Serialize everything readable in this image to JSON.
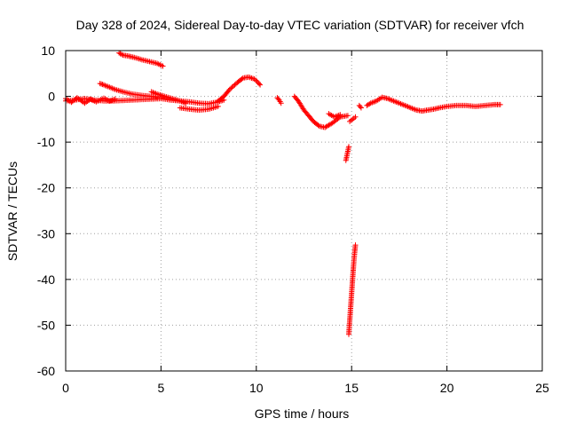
{
  "chart_data": {
    "type": "scatter",
    "title": "Day 328 of 2024, Sidereal Day-to-day VTEC variation (SDTVAR) for receiver vfch",
    "xlabel": "GPS time / hours",
    "ylabel": "SDTVAR / TECUs",
    "xlim": [
      0,
      25
    ],
    "ylim": [
      -60,
      10
    ],
    "xticks": [
      "0",
      "5",
      "10",
      "15",
      "20",
      "25"
    ],
    "yticks": [
      "10",
      "0",
      "-10",
      "-20",
      "-30",
      "-40",
      "-50",
      "-60"
    ],
    "grid": true,
    "marker": "+",
    "series_color": "#ff0000",
    "series": [
      {
        "name": "sdtvar",
        "segments": [
          {
            "x": [
              0.0,
              0.5,
              1.0,
              1.5,
              2.0,
              2.5,
              3.0,
              3.5,
              4.0,
              4.5,
              5.0,
              5.5,
              6.0,
              6.5,
              7.0,
              7.5,
              8.0,
              8.3
            ],
            "y": [
              -1.0,
              -0.8,
              -0.5,
              -0.8,
              -1.0,
              -1.0,
              -0.9,
              -0.8,
              -0.7,
              -0.6,
              -0.5,
              -0.8,
              -1.0,
              -1.2,
              -1.5,
              -1.6,
              -1.2,
              -0.8
            ]
          },
          {
            "x": [
              0.0,
              0.3,
              0.6,
              1.0,
              1.3,
              1.6,
              2.0,
              2.3,
              2.6
            ],
            "y": [
              -0.5,
              -1.3,
              -0.3,
              -1.5,
              -0.6,
              -1.2,
              -0.4,
              -1.0,
              -0.6
            ]
          },
          {
            "x": [
              1.8,
              2.0,
              2.3,
              2.6,
              3.0,
              3.5,
              4.0,
              4.5,
              4.8
            ],
            "y": [
              2.8,
              2.5,
              2.0,
              1.5,
              1.0,
              0.5,
              0.2,
              0.0,
              -0.2
            ]
          },
          {
            "x": [
              2.8,
              3.0,
              3.3,
              3.6,
              4.0,
              4.4,
              4.8,
              5.1
            ],
            "y": [
              9.5,
              9.0,
              8.8,
              8.5,
              8.0,
              7.6,
              7.2,
              6.6
            ]
          },
          {
            "x": [
              4.5,
              4.8,
              5.2,
              5.6,
              6.0,
              6.3
            ],
            "y": [
              1.0,
              0.5,
              0.0,
              -0.5,
              -1.0,
              -1.5
            ]
          },
          {
            "x": [
              6.0,
              6.5,
              7.0,
              7.5,
              8.0
            ],
            "y": [
              -2.5,
              -2.8,
              -3.0,
              -2.8,
              -2.2
            ]
          },
          {
            "x": [
              8.0,
              8.3,
              8.6,
              9.0,
              9.3,
              9.6,
              9.9,
              10.1,
              10.2
            ],
            "y": [
              -1.0,
              0.0,
              1.5,
              3.0,
              4.0,
              4.2,
              3.8,
              3.0,
              2.5
            ]
          },
          {
            "x": [
              11.1,
              11.2,
              11.3
            ],
            "y": [
              -0.3,
              -0.8,
              -1.5
            ]
          },
          {
            "x": [
              12.0,
              12.2,
              12.5,
              12.8,
              13.0,
              13.3,
              13.6,
              14.0,
              14.4,
              14.8
            ],
            "y": [
              0.0,
              -1.0,
              -3.0,
              -4.5,
              -5.5,
              -6.5,
              -6.8,
              -5.8,
              -4.5,
              -4.2
            ]
          },
          {
            "x": [
              13.8,
              14.1,
              14.4
            ],
            "y": [
              -3.8,
              -4.5,
              -4.0
            ]
          },
          {
            "x": [
              14.7,
              14.75,
              14.8,
              14.85
            ],
            "y": [
              -14.0,
              -13.0,
              -12.0,
              -11.0
            ]
          },
          {
            "x": [
              14.9,
              15.05,
              15.2
            ],
            "y": [
              -5.5,
              -5.0,
              -4.5
            ]
          },
          {
            "x": [
              15.4,
              15.5
            ],
            "y": [
              -2.0,
              -2.5
            ]
          },
          {
            "x": [
              14.85,
              14.9,
              14.95,
              15.0,
              15.05,
              15.1,
              15.15,
              15.2
            ],
            "y": [
              -52.0,
              -49.0,
              -46.0,
              -43.0,
              -40.0,
              -37.0,
              -34.5,
              -32.5
            ]
          },
          {
            "x": [
              15.8,
              16.0,
              16.3,
              16.6,
              16.9,
              17.2,
              17.5,
              17.8,
              18.1,
              18.4,
              18.7,
              19.0,
              19.3,
              19.6,
              20.0,
              20.5,
              21.0,
              21.5,
              22.0,
              22.5,
              22.8
            ],
            "y": [
              -2.0,
              -1.5,
              -1.0,
              -0.2,
              -0.5,
              -1.0,
              -1.5,
              -2.0,
              -2.5,
              -3.0,
              -3.2,
              -3.0,
              -2.8,
              -2.5,
              -2.2,
              -2.0,
              -2.0,
              -2.2,
              -2.0,
              -1.8,
              -1.8
            ]
          }
        ]
      }
    ]
  }
}
